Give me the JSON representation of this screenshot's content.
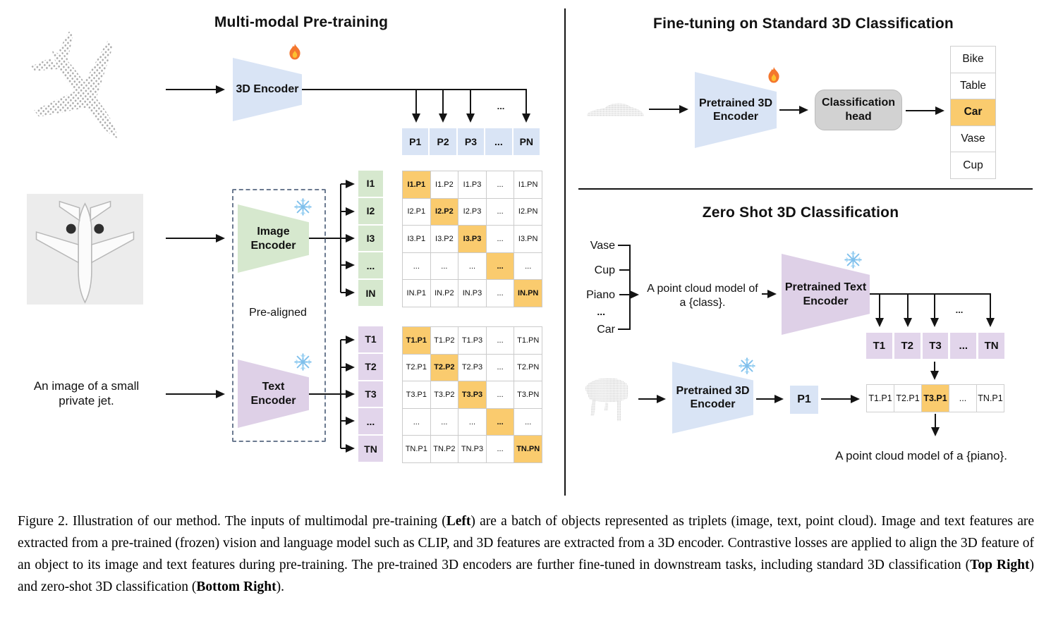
{
  "icons": {
    "fire": "trainable-flame",
    "snowflake": "frozen-snowflake"
  },
  "colors": {
    "highlight_orange": "#FACB6E",
    "encoder_blue": "#D9E4F5",
    "encoder_green": "#D6E8CE",
    "encoder_purple": "#DED0E7",
    "cell_purple": "#E2D5EB",
    "head_gray": "#D2D2D2"
  },
  "pretraining": {
    "title": "Multi-modal Pre-training",
    "encoder_3d_label": "3D Encoder",
    "image_encoder_label": "Image\nEncoder",
    "text_encoder_label": "Text\nEncoder",
    "pre_aligned": "Pre-aligned",
    "input_text": "An image of a small private jet.",
    "dots_label": "...",
    "p_row": [
      "P1",
      "P2",
      "P3",
      "...",
      "PN"
    ],
    "image_rows": [
      "I1",
      "I2",
      "I3",
      "...",
      "IN"
    ],
    "image_matrix": [
      [
        "I1.P1",
        "I1.P2",
        "I1.P3",
        "...",
        "I1.PN"
      ],
      [
        "I2.P1",
        "I2.P2",
        "I2.P3",
        "...",
        "I2.PN"
      ],
      [
        "I3.P1",
        "I3.P2",
        "I3.P3",
        "...",
        "I3.PN"
      ],
      [
        "...",
        "...",
        "...",
        "...",
        "..."
      ],
      [
        "IN.P1",
        "IN.P2",
        "IN.P3",
        "...",
        "IN.PN"
      ]
    ],
    "text_rows": [
      "T1",
      "T2",
      "T3",
      "...",
      "TN"
    ],
    "text_matrix": [
      [
        "T1.P1",
        "T1.P2",
        "T1.P3",
        "...",
        "T1.PN"
      ],
      [
        "T2.P1",
        "T2.P2",
        "T2.P3",
        "...",
        "T2.PN"
      ],
      [
        "T3.P1",
        "T3.P2",
        "T3.P3",
        "...",
        "T3.PN"
      ],
      [
        "...",
        "...",
        "...",
        "...",
        "..."
      ],
      [
        "TN.P1",
        "TN.P2",
        "TN.P3",
        "...",
        "TN.PN"
      ]
    ]
  },
  "finetuning": {
    "title": "Fine-tuning on Standard 3D Classification",
    "encoder_label": "Pretrained 3D\nEncoder",
    "head_label": "Classification\nhead",
    "classes": [
      "Bike",
      "Table",
      "Car",
      "Vase",
      "Cup"
    ],
    "highlight_index": 2
  },
  "zeroshot": {
    "title": "Zero Shot 3D Classification",
    "class_list": [
      "Vase",
      "Cup",
      "Piano",
      "...",
      "Car"
    ],
    "prompt": "A point cloud model of\na {class}.",
    "text_encoder_label": "Pretrained Text\nEncoder",
    "encoder_label": "Pretrained 3D\nEncoder",
    "p_box": "P1",
    "dots_label": "...",
    "t_row": [
      "T1",
      "T2",
      "T3",
      "...",
      "TN"
    ],
    "sim_row": [
      "T1.P1",
      "T2.P1",
      "T3.P1",
      "...",
      "TN.P1"
    ],
    "sim_highlight_index": 2,
    "result_text": "A point cloud model of a {piano}."
  },
  "caption": {
    "segments": [
      {
        "t": "Figure 2. Illustration of our method. The inputs of multimodal pre-training (",
        "b": false
      },
      {
        "t": "Left",
        "b": true
      },
      {
        "t": ") are a batch of objects represented as triplets (image, text, point cloud). Image and text features are extracted from a pre-trained (frozen) vision and language model such as CLIP, and 3D features are extracted from a 3D encoder. Contrastive losses are applied to align the 3D feature of an object to its image and text features during pre-training. The pre-trained 3D encoders are further fine-tuned in downstream tasks, including standard 3D classification (",
        "b": false
      },
      {
        "t": "Top Right",
        "b": true
      },
      {
        "t": ") and zero-shot 3D classification (",
        "b": false
      },
      {
        "t": "Bottom Right",
        "b": true
      },
      {
        "t": ").",
        "b": false
      }
    ]
  }
}
